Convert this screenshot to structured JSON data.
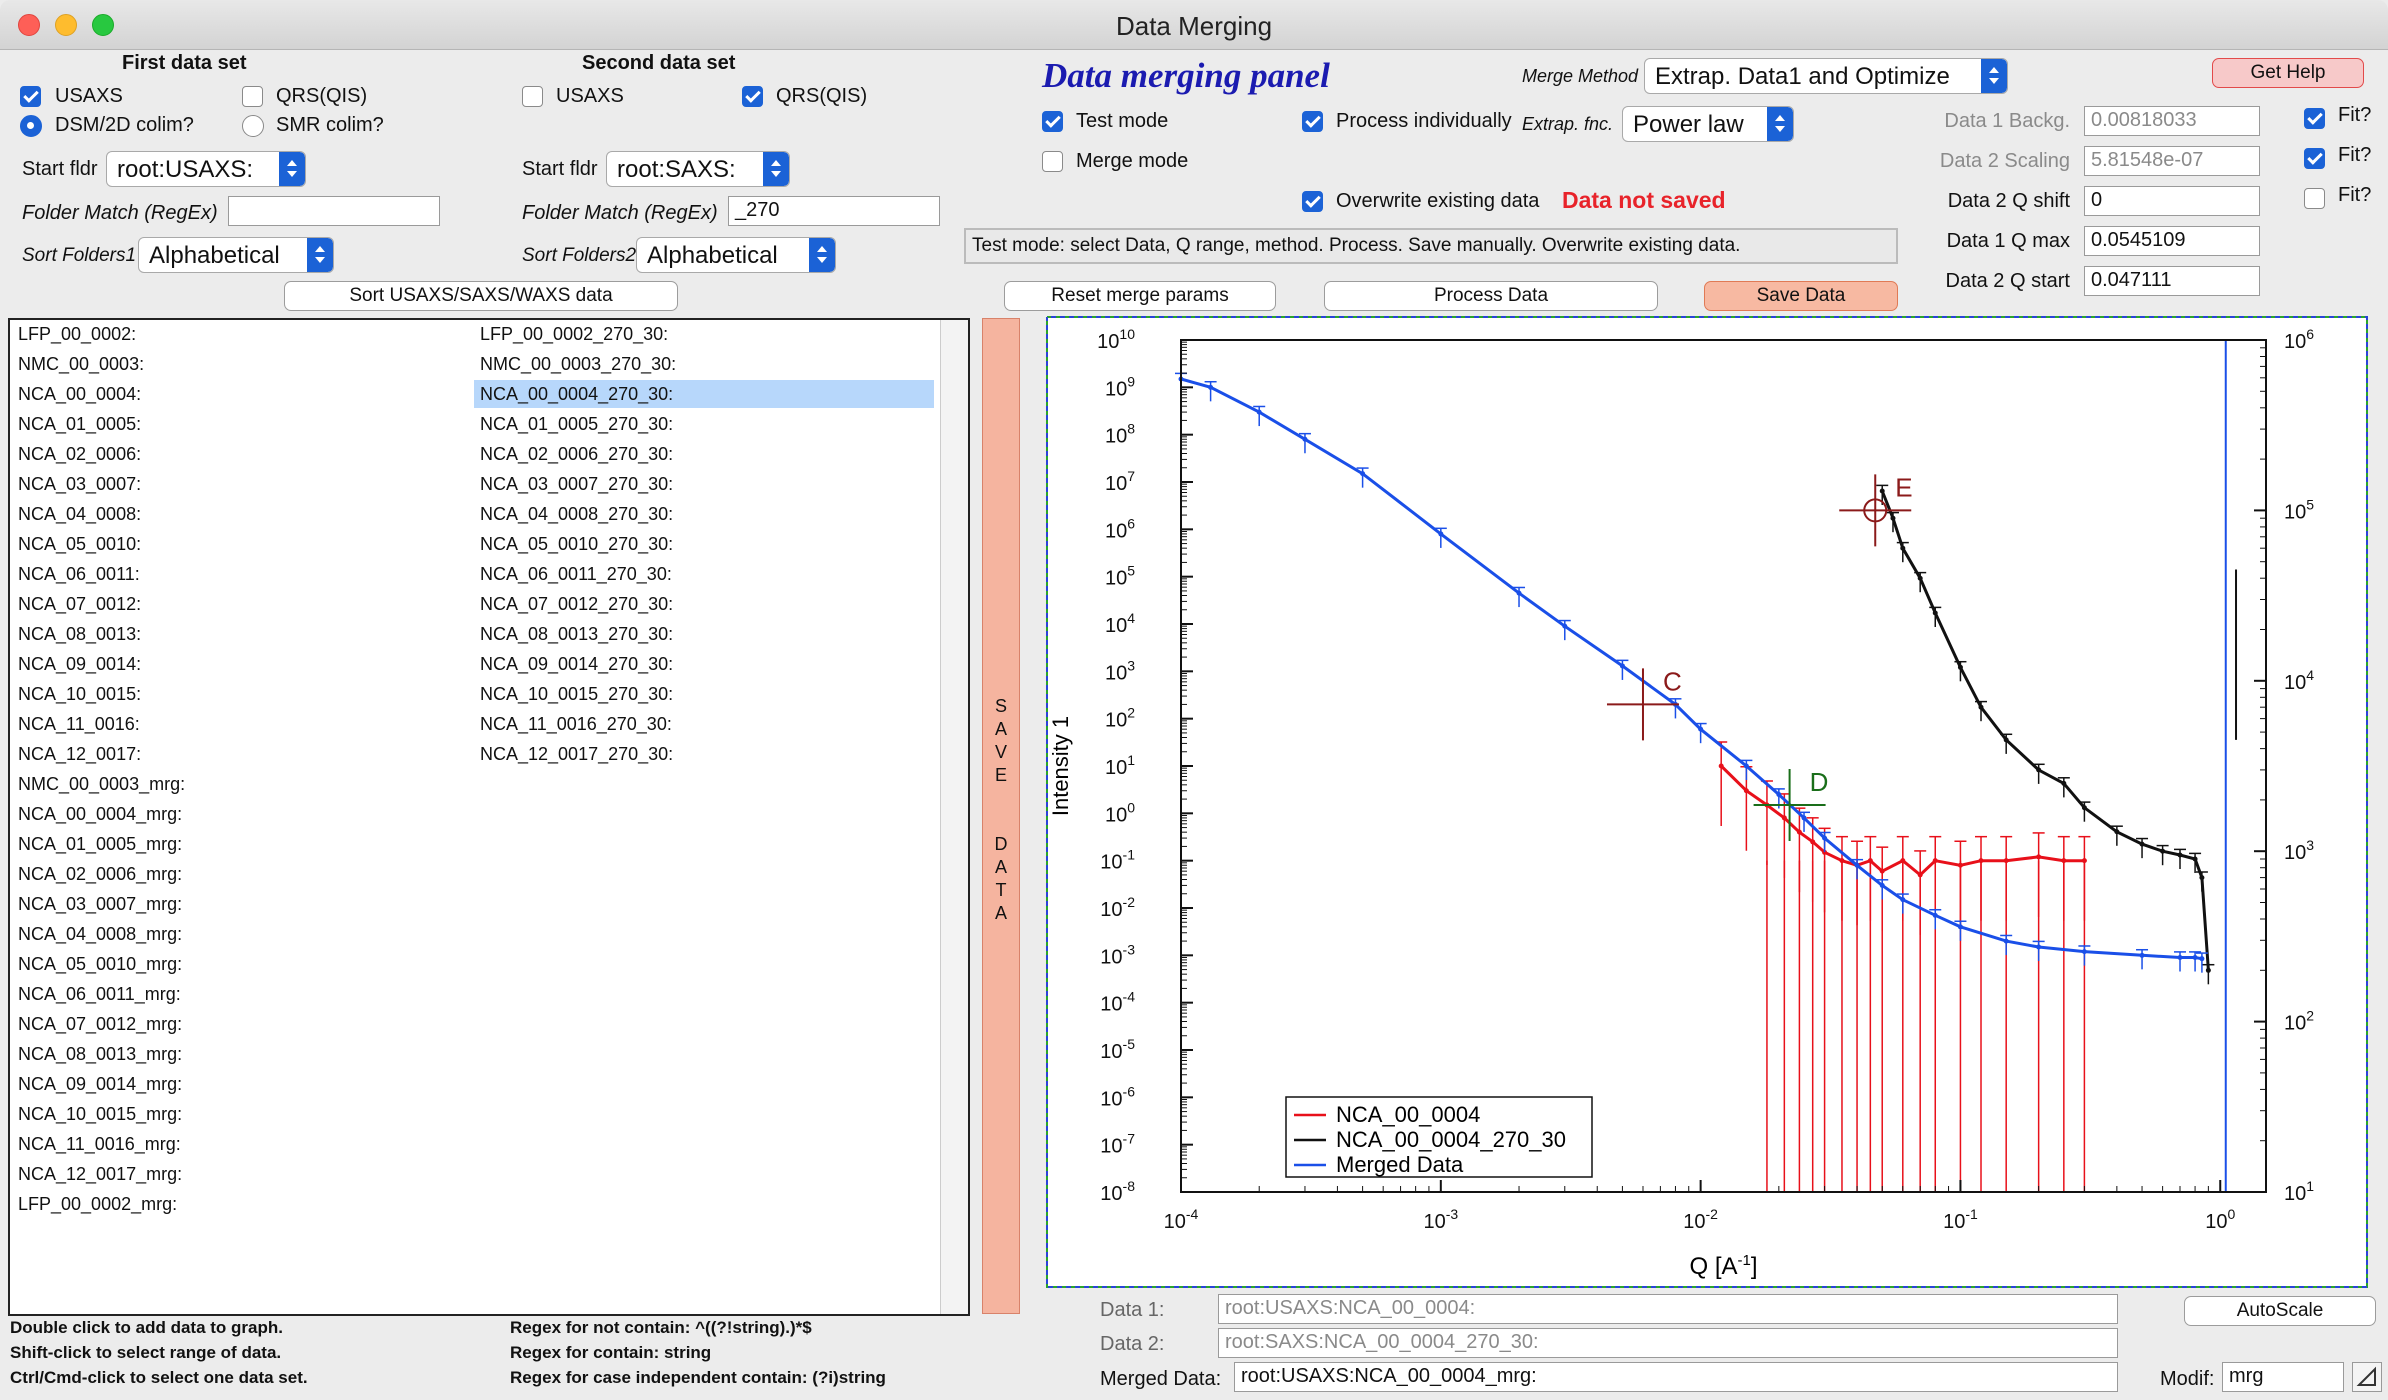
{
  "window": {
    "title": "Data Merging"
  },
  "first_set": {
    "heading": "First data set",
    "usaxs_label": "USAXS",
    "usaxs_checked": true,
    "qrs_label": "QRS(QIS)",
    "qrs_checked": false,
    "dsm_label": "DSM/2D colim?",
    "dsm_selected": true,
    "smr_label": "SMR colim?",
    "smr_selected": false,
    "start_fldr_label": "Start fldr",
    "start_fldr_value": "root:USAXS:",
    "folder_match_label": "Folder Match (RegEx)",
    "folder_match_value": "",
    "sort_label": "Sort Folders1",
    "sort_value": "Alphabetical"
  },
  "second_set": {
    "heading": "Second data set",
    "usaxs_label": "USAXS",
    "usaxs_checked": false,
    "qrs_label": "QRS(QIS)",
    "qrs_checked": true,
    "start_fldr_label": "Start fldr",
    "start_fldr_value": "root:SAXS:",
    "folder_match_label": "Folder Match (RegEx)",
    "folder_match_value": "_270",
    "sort_label": "Sort Folders2",
    "sort_value": "Alphabetical"
  },
  "sort_button": "Sort USAXS/SAXS/WAXS data",
  "panel": {
    "title": "Data merging  panel",
    "merge_method_label": "Merge Method",
    "merge_method_value": "Extrap. Data1 and Optimize",
    "test_mode_label": "Test mode",
    "test_mode_checked": true,
    "merge_mode_label": "Merge mode",
    "merge_mode_checked": false,
    "process_ind_label": "Process individually",
    "process_ind_checked": true,
    "extrap_label": "Extrap. fnc.",
    "extrap_value": "Power law",
    "overwrite_label": "Overwrite existing data",
    "overwrite_checked": true,
    "status_text": "Data not saved",
    "status_color": "#e8232a",
    "info_text": "Test mode: select Data, Q range, method. Process. Save manually. Overwrite existing data.",
    "get_help": "Get Help",
    "reset_button": "Reset merge params",
    "process_button": "Process Data",
    "save_button": "Save Data"
  },
  "params": [
    {
      "label": "Data 1 Backg.",
      "value": "0.00818033",
      "enabled": false,
      "fit_label": "Fit?",
      "fit_checked": true
    },
    {
      "label": "Data 2 Scaling",
      "value": "5.81548e-07",
      "enabled": false,
      "fit_label": "Fit?",
      "fit_checked": true
    },
    {
      "label": "Data 2 Q shift",
      "value": "0",
      "enabled": true,
      "fit_label": "Fit?",
      "fit_checked": false
    },
    {
      "label": "Data 1 Q max",
      "value": "0.0545109",
      "enabled": true
    },
    {
      "label": "Data 2 Q start",
      "value": "0.047111",
      "enabled": true
    }
  ],
  "list_left": [
    "LFP_00_0002:",
    "NMC_00_0003:",
    "NCA_00_0004:",
    "NCA_01_0005:",
    "NCA_02_0006:",
    "NCA_03_0007:",
    "NCA_04_0008:",
    "NCA_05_0010:",
    "NCA_06_0011:",
    "NCA_07_0012:",
    "NCA_08_0013:",
    "NCA_09_0014:",
    "NCA_10_0015:",
    "NCA_11_0016:",
    "NCA_12_0017:",
    "NMC_00_0003_mrg:",
    "NCA_00_0004_mrg:",
    "NCA_01_0005_mrg:",
    "NCA_02_0006_mrg:",
    "NCA_03_0007_mrg:",
    "NCA_04_0008_mrg:",
    "NCA_05_0010_mrg:",
    "NCA_06_0011_mrg:",
    "NCA_07_0012_mrg:",
    "NCA_08_0013_mrg:",
    "NCA_09_0014_mrg:",
    "NCA_10_0015_mrg:",
    "NCA_11_0016_mrg:",
    "NCA_12_0017_mrg:",
    "LFP_00_0002_mrg:"
  ],
  "list_right": [
    "LFP_00_0002_270_30:",
    "NMC_00_0003_270_30:",
    "NCA_00_0004_270_30:",
    "NCA_01_0005_270_30:",
    "NCA_02_0006_270_30:",
    "NCA_03_0007_270_30:",
    "NCA_04_0008_270_30:",
    "NCA_05_0010_270_30:",
    "NCA_06_0011_270_30:",
    "NCA_07_0012_270_30:",
    "NCA_08_0013_270_30:",
    "NCA_09_0014_270_30:",
    "NCA_10_0015_270_30:",
    "NCA_11_0016_270_30:",
    "NCA_12_0017_270_30:"
  ],
  "list_right_selected": 2,
  "save_vertical": "SAVE DATA",
  "help": {
    "h1": "Double click to add data to graph.",
    "h2": "Shift-click to select range of data.",
    "h3": "Ctrl/Cmd-click to select one data set.",
    "r1": "Regex for not contain: ^((?!string).)*$",
    "r2": "Regex for contain:  string",
    "r3": "Regex for case independent contain:  (?i)string"
  },
  "bottom": {
    "data1_label": "Data 1:",
    "data1_value": "root:USAXS:NCA_00_0004:",
    "data2_label": "Data 2:",
    "data2_value": "root:SAXS:NCA_00_0004_270_30:",
    "merged_label": "Merged Data:",
    "merged_value": "root:USAXS:NCA_00_0004_mrg:",
    "autoscale": "AutoScale",
    "modif_label": "Modif:",
    "modif_value": "mrg"
  },
  "chart_data": {
    "type": "scatter",
    "xlabel": "Q [A",
    "xlabel_sup": "-1",
    "xlabel_end": "]",
    "ylabel": "Intensity 1",
    "x_scale": "log",
    "y_scale": "log",
    "y2_scale": "log",
    "xlim": [
      0.0001,
      1.5
    ],
    "ylim": [
      1e-08,
      10000000000.0
    ],
    "y2lim": [
      10,
      1000000
    ],
    "x_ticks": [
      {
        "v": 0.0001,
        "m": "10",
        "e": "-4"
      },
      {
        "v": 0.001,
        "m": "10",
        "e": "-3"
      },
      {
        "v": 0.01,
        "m": "10",
        "e": "-2"
      },
      {
        "v": 0.1,
        "m": "10",
        "e": "-1"
      },
      {
        "v": 1,
        "m": "10",
        "e": "0"
      }
    ],
    "y_ticks": [
      {
        "v": 10000000000.0,
        "e": "10"
      },
      {
        "v": 1000000000.0,
        "e": "9"
      },
      {
        "v": 100000000.0,
        "e": "8"
      },
      {
        "v": 10000000.0,
        "e": "7"
      },
      {
        "v": 1000000.0,
        "e": "6"
      },
      {
        "v": 100000.0,
        "e": "5"
      },
      {
        "v": 10000.0,
        "e": "4"
      },
      {
        "v": 1000.0,
        "e": "3"
      },
      {
        "v": 100.0,
        "e": "2"
      },
      {
        "v": 10.0,
        "e": "1"
      },
      {
        "v": 1,
        "e": "0"
      },
      {
        "v": 0.1,
        "e": "-1"
      },
      {
        "v": 0.01,
        "e": "-2"
      },
      {
        "v": 0.001,
        "e": "-3"
      },
      {
        "v": 0.0001,
        "e": "-4"
      },
      {
        "v": 1e-05,
        "e": "-5"
      },
      {
        "v": 1e-06,
        "e": "-6"
      },
      {
        "v": 1e-07,
        "e": "-7"
      },
      {
        "v": 1e-08,
        "e": "-8"
      }
    ],
    "y2_ticks": [
      {
        "v": 1000000,
        "e": "6"
      },
      {
        "v": 100000,
        "e": "5"
      },
      {
        "v": 10000,
        "e": "4"
      },
      {
        "v": 1000,
        "e": "3"
      },
      {
        "v": 100,
        "e": "2"
      },
      {
        "v": 10,
        "e": "1"
      }
    ],
    "series": [
      {
        "name": "NCA_00_0004",
        "color": "#e8101a",
        "axis": "left",
        "x": [
          0.012,
          0.015,
          0.018,
          0.021,
          0.024,
          0.027,
          0.03,
          0.035,
          0.04,
          0.045,
          0.05,
          0.06,
          0.07,
          0.08,
          0.1,
          0.12,
          0.15,
          0.2,
          0.25,
          0.3
        ],
        "y": [
          10,
          3,
          1.5,
          0.8,
          0.4,
          0.25,
          0.15,
          0.1,
          0.08,
          0.1,
          0.06,
          0.1,
          0.05,
          0.1,
          0.08,
          0.1,
          0.1,
          0.12,
          0.1,
          0.1
        ]
      },
      {
        "name": "NCA_00_0004_270_30",
        "color": "#111111",
        "axis": "right",
        "x": [
          0.05,
          0.055,
          0.06,
          0.07,
          0.08,
          0.1,
          0.12,
          0.15,
          0.2,
          0.25,
          0.3,
          0.4,
          0.5,
          0.6,
          0.7,
          0.8,
          0.85,
          0.9
        ],
        "y": [
          130000,
          90000,
          60000,
          40000,
          25000,
          12000,
          7000,
          4500,
          3000,
          2500,
          1800,
          1300,
          1100,
          1000,
          950,
          900,
          700,
          200
        ]
      },
      {
        "name": "Merged Data",
        "color": "#1a4fe8",
        "axis": "left",
        "x": [
          0.0001,
          0.00013,
          0.0002,
          0.0003,
          0.0005,
          0.001,
          0.002,
          0.003,
          0.005,
          0.008,
          0.01,
          0.015,
          0.02,
          0.025,
          0.03,
          0.04,
          0.05,
          0.06,
          0.08,
          0.1,
          0.15,
          0.2,
          0.3,
          0.5,
          0.7,
          0.8,
          0.85
        ],
        "y": [
          1500000000.0,
          1000000000.0,
          300000000.0,
          80000000.0,
          15000000.0,
          800000.0,
          45000.0,
          9000.0,
          1300.0,
          200.0,
          60,
          10,
          2.5,
          0.8,
          0.3,
          0.08,
          0.03,
          0.015,
          0.007,
          0.004,
          0.002,
          0.0015,
          0.0012,
          0.001,
          0.0009,
          0.0009,
          0.00085
        ]
      }
    ],
    "cursors": [
      {
        "label": "C",
        "x": 0.006,
        "y": 200,
        "color": "#8b1a1a"
      },
      {
        "label": "D",
        "x": 0.022,
        "y": 1.5,
        "color": "#1a6e1a"
      },
      {
        "label": "E",
        "x": 0.047,
        "y": 100000,
        "color": "#8b1a1a"
      }
    ],
    "legend_position": "bottom-left"
  }
}
